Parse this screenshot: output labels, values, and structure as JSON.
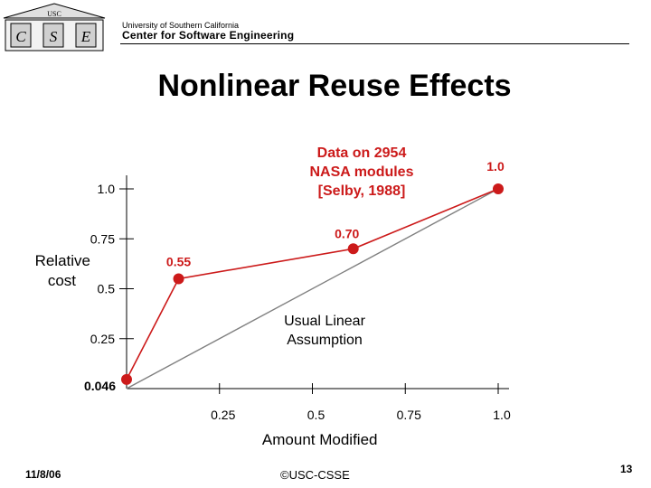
{
  "header": {
    "logo_text": "CSE",
    "logo_letters": [
      "C",
      "S",
      "E"
    ],
    "logo_top": "USC",
    "university": "University of Southern California",
    "center": "Center for Software  Engineering"
  },
  "slide": {
    "title": "Nonlinear Reuse Effects"
  },
  "footer": {
    "date": "11/8/06",
    "copyright": "©USC-CSSE",
    "page": "13"
  },
  "colors": {
    "data_line": "#cc1a1a",
    "reference_line": "#808080",
    "axis": "#000000"
  },
  "chart_data": {
    "type": "line",
    "title": "",
    "xlabel": "Amount Modified",
    "ylabel": [
      "Relative",
      "cost"
    ],
    "xlim": [
      0,
      1.0
    ],
    "ylim": [
      0,
      1.0
    ],
    "x_ticks": [
      {
        "value": 0.25,
        "label": "0.25"
      },
      {
        "value": 0.5,
        "label": "0.5"
      },
      {
        "value": 0.75,
        "label": "0.75"
      },
      {
        "value": 1.0,
        "label": "1.0"
      }
    ],
    "y_ticks": [
      {
        "value": 0.046,
        "label": "0.046"
      },
      {
        "value": 0.25,
        "label": "0.25"
      },
      {
        "value": 0.5,
        "label": "0.5"
      },
      {
        "value": 0.75,
        "label": "0.75"
      },
      {
        "value": 1.0,
        "label": "1.0"
      }
    ],
    "series": [
      {
        "name": "Data on 2954 NASA modules [Selby, 1988]",
        "points": [
          {
            "x": 0.0,
            "y": 0.046,
            "label": ""
          },
          {
            "x": 0.14,
            "y": 0.55,
            "label": "0.55"
          },
          {
            "x": 0.61,
            "y": 0.7,
            "label": "0.70"
          },
          {
            "x": 1.0,
            "y": 1.0,
            "label": "1.0"
          }
        ]
      },
      {
        "name": "Usual Linear Assumption",
        "points": [
          {
            "x": 0.0,
            "y": 0.0
          },
          {
            "x": 1.0,
            "y": 1.0
          }
        ]
      }
    ],
    "annotations": {
      "data_source": [
        "Data on 2954",
        "NASA modules",
        "[Selby, 1988]"
      ],
      "linear": [
        "Usual Linear",
        "Assumption"
      ]
    }
  }
}
